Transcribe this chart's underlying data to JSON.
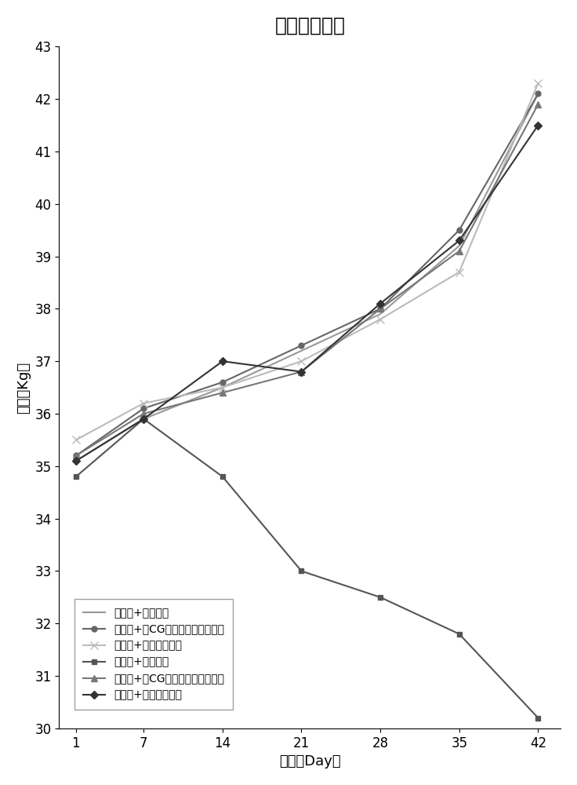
{
  "title": "仔猪体重检测",
  "xlabel": "天数（Day）",
  "ylabel": "体重（Kg）",
  "x": [
    1,
    7,
    14,
    21,
    28,
    35,
    42
  ],
  "series": [
    {
      "label": "正常组+普通饲料",
      "values": [
        35.1,
        35.9,
        36.5,
        37.2,
        37.9,
        39.2,
        42.1
      ],
      "color": "#999999",
      "marker": "None",
      "linestyle": "-",
      "linewidth": 1.5,
      "markersize": 0
    },
    {
      "label": "正常组+含CG岛芽孢杆菌菌粉饲料",
      "values": [
        35.2,
        36.1,
        36.6,
        37.3,
        38.0,
        39.5,
        42.1
      ],
      "color": "#666666",
      "marker": "o",
      "linestyle": "-",
      "linewidth": 1.5,
      "markersize": 5
    },
    {
      "label": "正常组+含抗生素饲料",
      "values": [
        35.5,
        36.2,
        36.5,
        37.0,
        37.8,
        38.7,
        42.3
      ],
      "color": "#bbbbbb",
      "marker": "x",
      "linestyle": "-",
      "linewidth": 1.5,
      "markersize": 7
    },
    {
      "label": "染病组+普通饲料",
      "values": [
        34.8,
        35.9,
        34.8,
        33.0,
        32.5,
        31.8,
        30.2
      ],
      "color": "#555555",
      "marker": "s",
      "linestyle": "-",
      "linewidth": 1.5,
      "markersize": 5
    },
    {
      "label": "染病组+含CG岛芽孢杆菌菌粉饲料",
      "values": [
        35.2,
        36.0,
        36.4,
        36.8,
        38.0,
        39.1,
        41.9
      ],
      "color": "#777777",
      "marker": "^",
      "linestyle": "-",
      "linewidth": 1.5,
      "markersize": 6
    },
    {
      "label": "染病组+含抗生素饲料",
      "values": [
        35.1,
        35.9,
        37.0,
        36.8,
        38.1,
        39.3,
        41.5
      ],
      "color": "#333333",
      "marker": "D",
      "linestyle": "-",
      "linewidth": 1.5,
      "markersize": 5
    }
  ],
  "ylim": [
    30,
    43
  ],
  "yticks": [
    30,
    31,
    32,
    33,
    34,
    35,
    36,
    37,
    38,
    39,
    40,
    41,
    42,
    43
  ],
  "xticks": [
    1,
    7,
    14,
    21,
    28,
    35,
    42
  ],
  "background_color": "#ffffff",
  "title_fontsize": 18,
  "label_fontsize": 13,
  "tick_fontsize": 12,
  "legend_fontsize": 10
}
